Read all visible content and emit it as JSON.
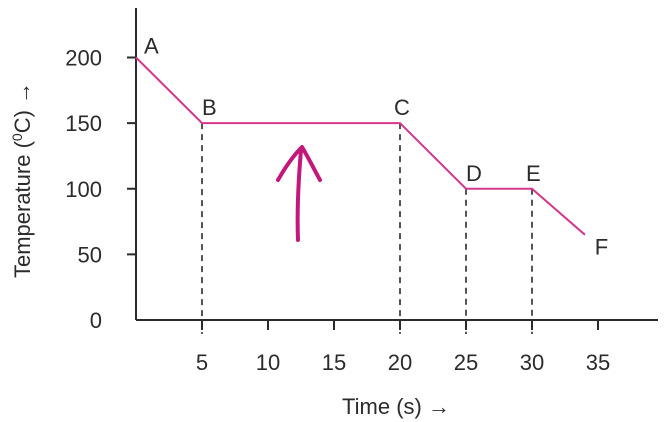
{
  "chart_data": {
    "type": "line",
    "xlabel": "Time (s) →",
    "ylabel_main": "Temperature (",
    "ylabel_sup": "0",
    "ylabel_tail": "C) →",
    "xlim": [
      0,
      40
    ],
    "ylim": [
      0,
      200
    ],
    "x_ticks": [
      5,
      10,
      15,
      20,
      25,
      30,
      35
    ],
    "x_tick_labels": [
      "5",
      "10",
      "15",
      "20",
      "25",
      "30",
      "35"
    ],
    "y_ticks": [
      0,
      50,
      100,
      150,
      200
    ],
    "y_tick_labels": [
      "0",
      "50",
      "100",
      "150",
      "200"
    ],
    "grid": false,
    "line_color": "#d4388c",
    "axis_color": "#2b2b2b",
    "points": [
      {
        "label": "A",
        "x": 0,
        "y": 200
      },
      {
        "label": "B",
        "x": 5,
        "y": 150
      },
      {
        "label": "C",
        "x": 20,
        "y": 150
      },
      {
        "label": "D",
        "x": 25,
        "y": 100
      },
      {
        "label": "E",
        "x": 30,
        "y": 100
      },
      {
        "label": "F",
        "x": 34,
        "y": 65
      }
    ],
    "dashed_drop_lines_at_x": [
      5,
      20,
      25,
      30
    ],
    "annotation": {
      "kind": "handwritten-up-arrow",
      "color": "#c4177a"
    }
  }
}
